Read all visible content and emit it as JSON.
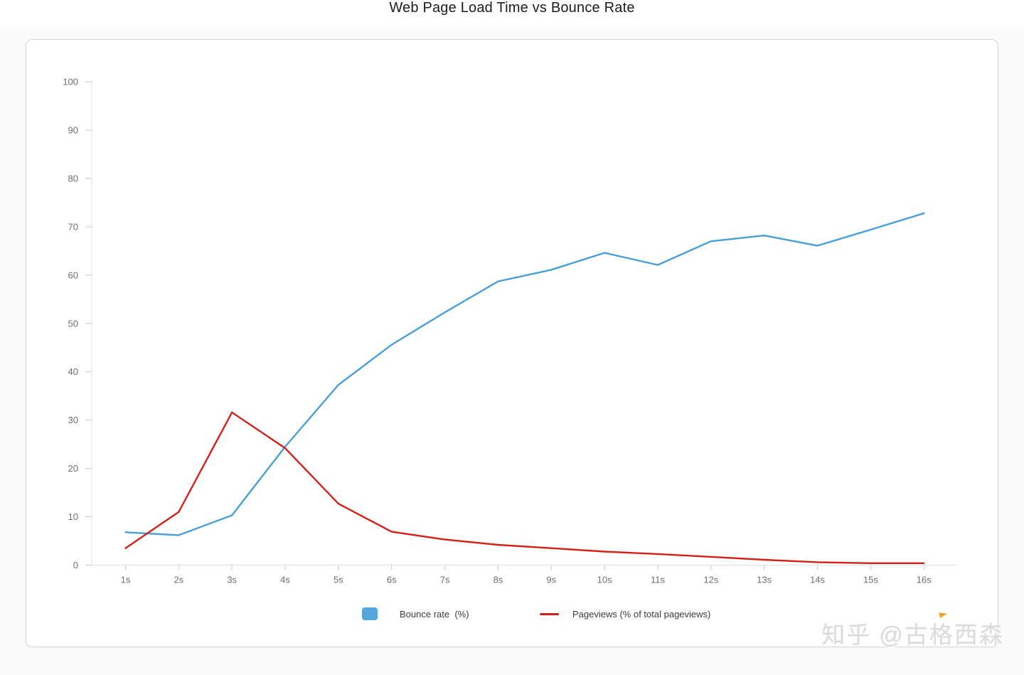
{
  "page": {
    "title": "Web Page Load Time vs Bounce Rate",
    "watermark": "知乎 @古格西森"
  },
  "legend": {
    "items": [
      {
        "label": "Bounce rate  (%)",
        "swatch": "square",
        "color": "#55a8dc"
      },
      {
        "label": "Pageviews (% of total pageviews)",
        "swatch": "line",
        "color": "#d32019"
      }
    ]
  },
  "chart_data": {
    "type": "line",
    "title": "Web Page Load Time vs Bounce Rate",
    "categories": [
      "1s",
      "2s",
      "3s",
      "4s",
      "5s",
      "6s",
      "7s",
      "8s",
      "9s",
      "10s",
      "11s",
      "12s",
      "13s",
      "14s",
      "15s",
      "16s"
    ],
    "series": [
      {
        "name": "Bounce rate (%)",
        "color": "#489fd6",
        "values": [
          6.8,
          6.2,
          10.3,
          24.5,
          37.3,
          45.6,
          52.3,
          58.7,
          61.1,
          64.6,
          62.1,
          67.0,
          68.2,
          66.1,
          69.4,
          72.8
        ]
      },
      {
        "name": "Pageviews (% of total pageviews)",
        "color": "#d32019",
        "values": [
          3.5,
          11.0,
          31.6,
          24.2,
          12.7,
          6.9,
          5.3,
          4.2,
          3.5,
          2.8,
          2.3,
          1.7,
          1.1,
          0.6,
          0.4,
          0.4
        ]
      }
    ],
    "xlabel": "",
    "ylabel": "",
    "ylim": [
      0,
      100
    ],
    "yticks": [
      0,
      10,
      20,
      30,
      40,
      50,
      60,
      70,
      80,
      90,
      100
    ],
    "grid": false,
    "legend_position": "bottom"
  }
}
